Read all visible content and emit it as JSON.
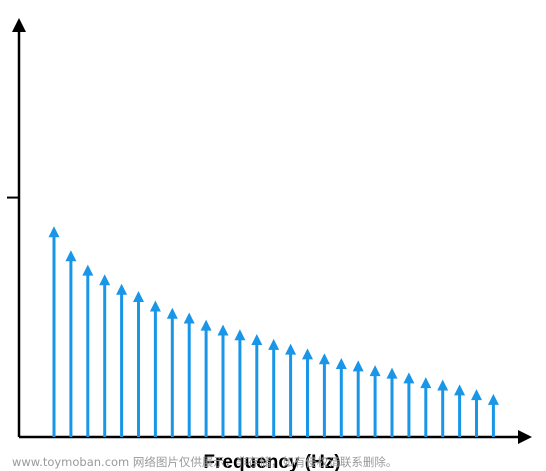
{
  "chart_data": {
    "type": "stem",
    "title": "",
    "xlabel": "Frequency (Hz)",
    "ylabel": "",
    "x_ticks": [],
    "y_ticks": [
      ""
    ],
    "y_tick_values": [
      1.0
    ],
    "ylim": [
      0,
      1.75
    ],
    "x": [
      1,
      2,
      3,
      4,
      5,
      6,
      7,
      8,
      9,
      10,
      11,
      12,
      13,
      14,
      15,
      16,
      17,
      18,
      19,
      20,
      21,
      22,
      23,
      24,
      25,
      26,
      27
    ],
    "values": [
      0.88,
      0.78,
      0.72,
      0.68,
      0.64,
      0.61,
      0.57,
      0.54,
      0.52,
      0.49,
      0.47,
      0.45,
      0.43,
      0.41,
      0.39,
      0.37,
      0.35,
      0.33,
      0.32,
      0.3,
      0.29,
      0.27,
      0.25,
      0.24,
      0.22,
      0.2,
      0.18
    ],
    "grid": false,
    "legend": "none"
  },
  "colors": {
    "stem": "#1996e8",
    "axis": "#000000"
  },
  "watermark": "www.toymoban.com 网络图片仅供展示，非存储，如有侵权请联系删除。"
}
